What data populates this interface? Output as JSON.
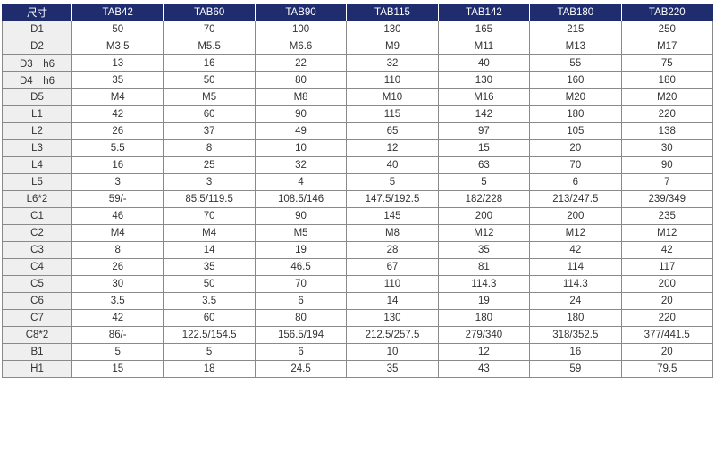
{
  "colors": {
    "header_bg": "#1f2d6e",
    "label_bg": "#efefef"
  },
  "table": {
    "headers": [
      "尺寸",
      "TAB42",
      "TAB60",
      "TAB90",
      "TAB115",
      "TAB142",
      "TAB180",
      "TAB220"
    ],
    "rows": [
      [
        "D1",
        "50",
        "70",
        "100",
        "130",
        "165",
        "215",
        "250"
      ],
      [
        "D2",
        "M3.5",
        "M5.5",
        "M6.6",
        "M9",
        "M11",
        "M13",
        "M17"
      ],
      [
        "D3　h6",
        "13",
        "16",
        "22",
        "32",
        "40",
        "55",
        "75"
      ],
      [
        "D4　h6",
        "35",
        "50",
        "80",
        "110",
        "130",
        "160",
        "180"
      ],
      [
        "D5",
        "M4",
        "M5",
        "M8",
        "M10",
        "M16",
        "M20",
        "M20"
      ],
      [
        "L1",
        "42",
        "60",
        "90",
        "115",
        "142",
        "180",
        "220"
      ],
      [
        "L2",
        "26",
        "37",
        "49",
        "65",
        "97",
        "105",
        "138"
      ],
      [
        "L3",
        "5.5",
        "8",
        "10",
        "12",
        "15",
        "20",
        "30"
      ],
      [
        "L4",
        "16",
        "25",
        "32",
        "40",
        "63",
        "70",
        "90"
      ],
      [
        "L5",
        "3",
        "3",
        "4",
        "5",
        "5",
        "6",
        "7"
      ],
      [
        "L6*2",
        "59/-",
        "85.5/119.5",
        "108.5/146",
        "147.5/192.5",
        "182/228",
        "213/247.5",
        "239/349"
      ],
      [
        "C1",
        "46",
        "70",
        "90",
        "145",
        "200",
        "200",
        "235"
      ],
      [
        "C2",
        "M4",
        "M4",
        "M5",
        "M8",
        "M12",
        "M12",
        "M12"
      ],
      [
        "C3",
        "8",
        "14",
        "19",
        "28",
        "35",
        "42",
        "42"
      ],
      [
        "C4",
        "26",
        "35",
        "46.5",
        "67",
        "81",
        "114",
        "117"
      ],
      [
        "C5",
        "30",
        "50",
        "70",
        "110",
        "114.3",
        "114.3",
        "200"
      ],
      [
        "C6",
        "3.5",
        "3.5",
        "6",
        "14",
        "19",
        "24",
        "20"
      ],
      [
        "C7",
        "42",
        "60",
        "80",
        "130",
        "180",
        "180",
        "220"
      ],
      [
        "C8*2",
        "86/-",
        "122.5/154.5",
        "156.5/194",
        "212.5/257.5",
        "279/340",
        "318/352.5",
        "377/441.5"
      ],
      [
        "B1",
        "5",
        "5",
        "6",
        "10",
        "12",
        "16",
        "20"
      ],
      [
        "H1",
        "15",
        "18",
        "24.5",
        "35",
        "43",
        "59",
        "79.5"
      ]
    ]
  }
}
